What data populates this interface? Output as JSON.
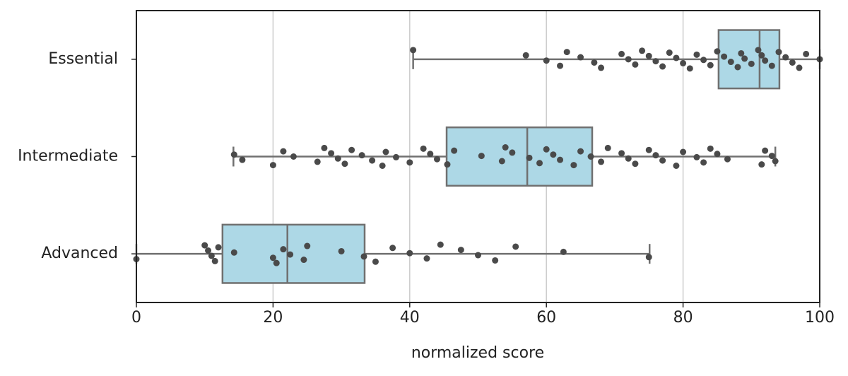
{
  "chart_data": {
    "type": "box",
    "xlabel": "normalized score",
    "categories": [
      "Essential",
      "Intermediate",
      "Advanced"
    ],
    "boxes": [
      {
        "whislo": 40.5,
        "q1": 85.2,
        "med": 91.2,
        "q3": 94.1,
        "whishi": 100
      },
      {
        "whislo": 14.2,
        "q1": 45.4,
        "med": 57.2,
        "q3": 66.7,
        "whishi": 93.5
      },
      {
        "whislo": 0,
        "q1": 12.6,
        "med": 22.1,
        "q3": 33.4,
        "whishi": 75.1
      }
    ],
    "points": [
      [
        40.5,
        57,
        60,
        62,
        63,
        65,
        67,
        68,
        71,
        72,
        73,
        74,
        75,
        76,
        77,
        78,
        79,
        80,
        81,
        82,
        83,
        84,
        85,
        86,
        87,
        88,
        88.5,
        89,
        90,
        91,
        91.5,
        92,
        93,
        94,
        95,
        96,
        97,
        98,
        100
      ],
      [
        14.3,
        15.5,
        20,
        21.5,
        23,
        26.5,
        27.5,
        28.5,
        29.5,
        30.5,
        31.5,
        33,
        34.5,
        36,
        36.5,
        38,
        40,
        42,
        43,
        44,
        45.5,
        46.5,
        50.5,
        53.5,
        54,
        55,
        57.5,
        59,
        60,
        61,
        62,
        64,
        65,
        66.5,
        68,
        69,
        71,
        72,
        73,
        75,
        76,
        77,
        79,
        80,
        82,
        83,
        84,
        85,
        86.5,
        91.5,
        92,
        93,
        93.5
      ],
      [
        0,
        10,
        10.5,
        11,
        11.5,
        12,
        14.3,
        20,
        20.5,
        21.5,
        22.5,
        24.5,
        25,
        30,
        33.3,
        35,
        37.5,
        40,
        42.5,
        44.5,
        47.5,
        50,
        52.5,
        55.5,
        62.5,
        75
      ]
    ],
    "box_color": "#add8e6",
    "edge_color": "#707070",
    "point_color": "#4a4a4a",
    "xlim": [
      0,
      100
    ],
    "xticks": [
      0,
      20,
      40,
      60,
      80,
      100
    ],
    "grid": true
  }
}
